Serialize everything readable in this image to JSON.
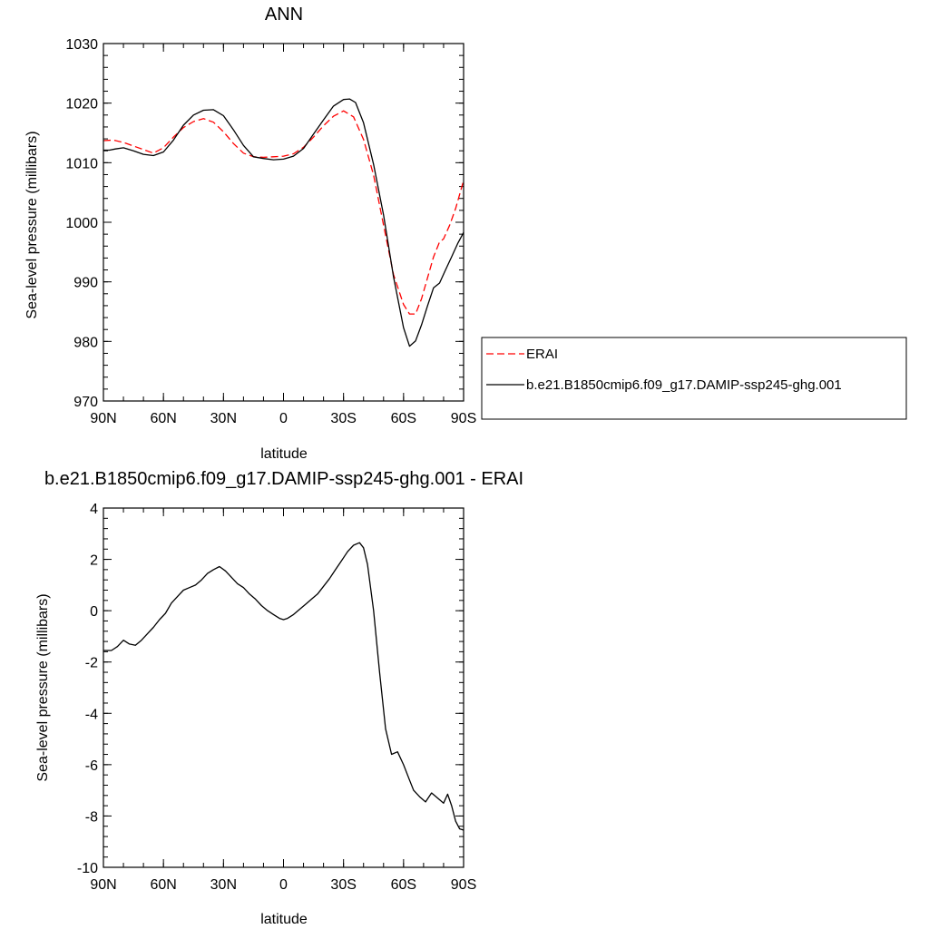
{
  "chart_data": [
    {
      "type": "line",
      "title": "ANN",
      "xlabel": "latitude",
      "ylabel": "Sea-level pressure (millibars)",
      "xlim": [
        90,
        -90
      ],
      "ylim": [
        970,
        1030
      ],
      "xticks": [
        90,
        60,
        30,
        0,
        -30,
        -60,
        -90
      ],
      "xtick_labels": [
        "90N",
        "60N",
        "30N",
        "0",
        "30S",
        "60S",
        "90S"
      ],
      "yticks": [
        970,
        980,
        990,
        1000,
        1010,
        1020,
        1030
      ],
      "ytick_labels": [
        "970",
        "980",
        "990",
        "1000",
        "1010",
        "1020",
        "1030"
      ],
      "grid": false,
      "legend_position": "right",
      "series": [
        {
          "name": "ERAI",
          "color": "#ff0000",
          "style": "dashed",
          "x": [
            90,
            85,
            80,
            75,
            70,
            65,
            60,
            55,
            50,
            45,
            40,
            35,
            30,
            25,
            20,
            15,
            10,
            5,
            0,
            -5,
            -10,
            -15,
            -20,
            -25,
            -30,
            -35,
            -40,
            -45,
            -50,
            -55,
            -60,
            -63,
            -66,
            -69,
            -72,
            -75,
            -78,
            -80,
            -83,
            -86,
            -90
          ],
          "y": [
            1013.7,
            1013.8,
            1013.4,
            1012.8,
            1012.2,
            1011.6,
            1012.5,
            1014.3,
            1015.9,
            1016.9,
            1017.4,
            1016.8,
            1015.2,
            1013.2,
            1011.6,
            1011.0,
            1010.9,
            1011.0,
            1011.1,
            1011.5,
            1012.6,
            1014.3,
            1016.2,
            1017.8,
            1018.7,
            1017.7,
            1013.9,
            1007.9,
            999.5,
            991.2,
            986.2,
            984.6,
            984.6,
            987.2,
            990.7,
            994.2,
            996.7,
            997.2,
            999.5,
            1002.3,
            1007.0
          ]
        },
        {
          "name": "b.e21.B1850cmip6.f09_g17.DAMIP-ssp245-ghg.001",
          "color": "#000000",
          "style": "solid",
          "x": [
            90,
            87,
            84,
            80,
            75,
            70,
            65,
            60,
            55,
            50,
            45,
            40,
            35,
            30,
            25,
            20,
            15,
            10,
            5,
            0,
            -5,
            -10,
            -15,
            -20,
            -25,
            -30,
            -33,
            -36,
            -40,
            -45,
            -50,
            -55,
            -60,
            -63,
            -66,
            -69,
            -72,
            -75,
            -78,
            -81,
            -84,
            -87,
            -90
          ],
          "y": [
            1012.1,
            1012.1,
            1012.3,
            1012.5,
            1012.0,
            1011.4,
            1011.2,
            1011.8,
            1013.8,
            1016.3,
            1018.0,
            1018.8,
            1018.9,
            1017.9,
            1015.5,
            1012.9,
            1011.0,
            1010.7,
            1010.5,
            1010.6,
            1011.1,
            1012.4,
            1014.8,
            1017.2,
            1019.5,
            1020.6,
            1020.7,
            1020.1,
            1016.7,
            1009.7,
            1001.2,
            990.8,
            982.3,
            979.2,
            980.1,
            982.8,
            986.0,
            989.0,
            989.8,
            992.0,
            994.2,
            996.4,
            998.3
          ]
        }
      ]
    },
    {
      "type": "line",
      "title": "b.e21.B1850cmip6.f09_g17.DAMIP-ssp245-ghg.001 - ERAI",
      "xlabel": "latitude",
      "ylabel": "Sea-level pressure (millibars)",
      "xlim": [
        90,
        -90
      ],
      "ylim": [
        -10,
        4
      ],
      "xticks": [
        90,
        60,
        30,
        0,
        -30,
        -60,
        -90
      ],
      "xtick_labels": [
        "90N",
        "60N",
        "30N",
        "0",
        "30S",
        "60S",
        "90S"
      ],
      "yticks": [
        -10,
        -8,
        -6,
        -4,
        -2,
        0,
        2,
        4
      ],
      "ytick_labels": [
        "-10",
        "-8",
        "-6",
        "-4",
        "-2",
        "0",
        "2",
        "4"
      ],
      "grid": false,
      "series": [
        {
          "color": "#000000",
          "style": "solid",
          "x": [
            90,
            86,
            83,
            80,
            77,
            74,
            71,
            68,
            65,
            62,
            59,
            56,
            53,
            50,
            47,
            44,
            41,
            38,
            35,
            32,
            29,
            26,
            23,
            20,
            17,
            14,
            11,
            8,
            5,
            2,
            0,
            -2,
            -5,
            -8,
            -11,
            -14,
            -17,
            -20,
            -23,
            -26,
            -29,
            -32,
            -35,
            -38,
            -40,
            -42,
            -45,
            -48,
            -51,
            -54,
            -57,
            -60,
            -63,
            -65,
            -68,
            -71,
            -74,
            -77,
            -80,
            -82,
            -84,
            -86,
            -88,
            -90
          ],
          "y": [
            -1.55,
            -1.55,
            -1.4,
            -1.15,
            -1.3,
            -1.35,
            -1.15,
            -0.9,
            -0.65,
            -0.35,
            -0.1,
            0.3,
            0.55,
            0.8,
            0.9,
            1.0,
            1.2,
            1.45,
            1.6,
            1.72,
            1.55,
            1.3,
            1.05,
            0.9,
            0.65,
            0.45,
            0.2,
            0.0,
            -0.15,
            -0.3,
            -0.35,
            -0.3,
            -0.15,
            0.05,
            0.25,
            0.45,
            0.65,
            0.95,
            1.25,
            1.6,
            1.95,
            2.3,
            2.55,
            2.65,
            2.45,
            1.8,
            0.0,
            -2.4,
            -4.6,
            -5.6,
            -5.5,
            -6.0,
            -6.6,
            -7.0,
            -7.25,
            -7.45,
            -7.1,
            -7.3,
            -7.5,
            -7.15,
            -7.6,
            -8.2,
            -8.5,
            -8.55
          ]
        }
      ]
    }
  ]
}
